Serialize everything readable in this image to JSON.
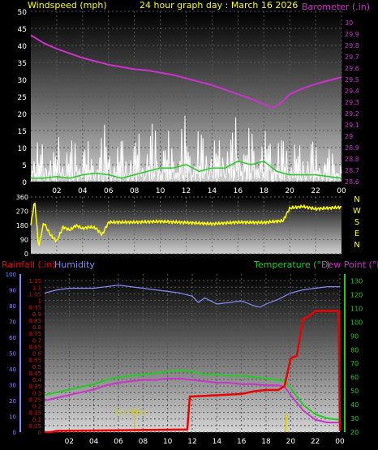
{
  "header": {
    "title": "24 hour graph day : March 16 2026"
  },
  "colors": {
    "windspeed": "#ffffff",
    "gust_avg": "#22cc22",
    "barometer": "#cc33cc",
    "wind_dir": "#ffff00",
    "rainfall": "#ee0000",
    "humidity": "#8888ff",
    "temperature": "#22cc22",
    "dew_point": "#cc33cc",
    "sunrise": "#cccc00",
    "label_yellow": "#ffff00"
  },
  "chart_data": [
    {
      "type": "line",
      "name": "wind-barometer",
      "left_axis_label": "Windspeed (mph)",
      "right_axis_label": "Barometer (.in)",
      "x_ticks": [
        "02",
        "04",
        "06",
        "08",
        "10",
        "12",
        "14",
        "16",
        "18",
        "20",
        "22",
        "00"
      ],
      "xlim": [
        0,
        24
      ],
      "left_ylim": [
        0,
        50
      ],
      "left_ticks": [
        0,
        5,
        10,
        15,
        20,
        25,
        30,
        35,
        40,
        45,
        50
      ],
      "right_ylim": [
        28.6,
        30.1
      ],
      "right_ticks": [
        "28.6",
        "28.7",
        "28.8",
        "28.9",
        "29",
        "29.1",
        "29.2",
        "29.3",
        "29.4",
        "29.5",
        "29.6",
        "29.7",
        "29.8",
        "29.9",
        "30"
      ],
      "series": [
        {
          "key": "windspeed_peaks",
          "x": [
            0.2,
            0.8,
            1.4,
            2.0,
            2.6,
            3.2,
            3.8,
            4.4,
            5.0,
            5.6,
            6.2,
            6.8,
            7.4,
            8.0,
            8.6,
            9.2,
            9.8,
            10.4,
            11.0,
            11.6,
            12.2,
            12.8,
            13.4,
            14.0,
            14.6,
            15.2,
            15.8,
            16.4,
            17.0,
            17.6,
            18.2,
            18.8,
            19.4,
            20.0,
            20.6,
            21.2,
            21.8,
            22.4,
            23.0,
            23.6
          ],
          "y": [
            12,
            15,
            10,
            17,
            13,
            16,
            14,
            12,
            15,
            18,
            11,
            16,
            12,
            17,
            14,
            19,
            16,
            15,
            13,
            20,
            15,
            17,
            16,
            14,
            18,
            17,
            22,
            16,
            19,
            15,
            20,
            14,
            16,
            13,
            12,
            15,
            11,
            13,
            10,
            12
          ]
        },
        {
          "key": "gust_avg",
          "x": [
            0,
            1,
            2,
            3,
            4,
            5,
            6,
            7,
            8,
            9,
            10,
            11,
            12,
            13,
            14,
            15,
            16,
            17,
            18,
            19,
            20,
            21,
            22,
            23,
            24
          ],
          "y": [
            1,
            1,
            1.5,
            1,
            2,
            2.5,
            2,
            1,
            2,
            3,
            4,
            4,
            5,
            3,
            4,
            4,
            6,
            5,
            6,
            3,
            2,
            2,
            2,
            1.5,
            1
          ]
        },
        {
          "key": "barometer",
          "x": [
            0,
            1,
            2,
            3,
            4,
            5,
            6,
            7,
            8,
            9,
            10,
            11,
            12,
            13,
            14,
            15,
            16,
            17,
            18,
            18.6,
            19,
            19.5,
            20,
            21,
            22,
            23,
            24
          ],
          "y": [
            29.89,
            29.82,
            29.77,
            29.73,
            29.69,
            29.66,
            29.63,
            29.61,
            29.59,
            29.58,
            29.56,
            29.54,
            29.51,
            29.48,
            29.45,
            29.41,
            29.37,
            29.33,
            29.28,
            29.25,
            29.27,
            29.31,
            29.37,
            29.42,
            29.46,
            29.49,
            29.52
          ]
        }
      ]
    },
    {
      "type": "line",
      "name": "wind-direction",
      "ylim": [
        0,
        360
      ],
      "left_ticks": [
        "0",
        "90",
        "180",
        "270",
        "360"
      ],
      "right_labels": [
        "N",
        "W",
        "S",
        "E",
        "N"
      ],
      "xlim": [
        0,
        24
      ],
      "series": [
        {
          "key": "direction",
          "x": [
            0,
            0.3,
            0.6,
            1.0,
            1.5,
            2.0,
            2.5,
            3.0,
            3.5,
            4.0,
            4.5,
            5.0,
            5.5,
            6.0,
            8,
            10,
            12,
            14,
            16,
            18,
            19.5,
            20,
            21,
            22,
            23,
            24
          ],
          "y": [
            180,
            340,
            40,
            200,
            120,
            80,
            170,
            150,
            180,
            160,
            170,
            165,
            120,
            200,
            200,
            205,
            198,
            190,
            200,
            198,
            210,
            290,
            300,
            285,
            290,
            295
          ]
        }
      ]
    },
    {
      "type": "line",
      "name": "rain-humidity-temp",
      "left_axis_label": "Rainfall (.in)",
      "left2_axis_label": "Humidity",
      "right_axis_label": "Temperature (°F)",
      "right2_axis_label": "Dew Point (°F)",
      "annotation": "Sun Rise",
      "sunrise_x": 7.3,
      "x_ticks": [
        "02",
        "04",
        "06",
        "08",
        "10",
        "12",
        "14",
        "16",
        "18",
        "20",
        "22",
        "00"
      ],
      "xlim": [
        0,
        24
      ],
      "rain_ylim": [
        0,
        1.2
      ],
      "rain_ticks": [
        "0",
        "0.05",
        "0.1",
        "0.15",
        "0.2",
        "0.25",
        "0.3",
        "0.35",
        "0.4",
        "0.45",
        "0.5",
        "0.55",
        "0.6",
        "0.65",
        "0.7",
        "0.75",
        "0.8",
        "0.85",
        "0.9",
        "0.95",
        "1",
        "1.05",
        "1.1",
        "1.15"
      ],
      "humidity_ylim": [
        0,
        100
      ],
      "humidity_ticks": [
        0,
        10,
        20,
        30,
        40,
        50,
        60,
        70,
        80,
        90,
        100
      ],
      "temp_ylim": [
        20,
        135
      ],
      "temp_ticks": [
        20,
        30,
        40,
        50,
        60,
        70,
        80,
        90,
        100,
        110,
        120,
        130
      ],
      "series": [
        {
          "key": "rainfall",
          "x": [
            0,
            0.5,
            1,
            11.6,
            11.8,
            14,
            16,
            17,
            18,
            19,
            19.5,
            20,
            20.5,
            21,
            21.5,
            22,
            23,
            23.9,
            24
          ],
          "y": [
            0,
            0,
            0.01,
            0.02,
            0.27,
            0.28,
            0.29,
            0.31,
            0.32,
            0.32,
            0.35,
            0.56,
            0.58,
            0.86,
            0.88,
            0.92,
            0.92,
            0.92,
            0.01
          ]
        },
        {
          "key": "humidity",
          "x": [
            0,
            1,
            2,
            3,
            4,
            5,
            6,
            7,
            8,
            9,
            10,
            11,
            12,
            12.5,
            13,
            14,
            15,
            16,
            17,
            17.5,
            18,
            19,
            20,
            21,
            22,
            23,
            24
          ],
          "y": [
            88,
            90,
            91,
            91,
            91,
            92,
            93,
            92,
            91,
            90,
            89,
            88,
            86,
            82,
            85,
            81,
            82,
            83,
            80,
            79,
            81,
            84,
            88,
            90,
            91,
            92,
            92
          ]
        },
        {
          "key": "temperature",
          "x": [
            0,
            1,
            2,
            3,
            4,
            5,
            6,
            7,
            8,
            9,
            10,
            11,
            12,
            13,
            14,
            15,
            16,
            17,
            18,
            19,
            19.5,
            20,
            21,
            22,
            23,
            24
          ],
          "y": [
            47,
            49,
            51,
            53,
            55,
            58,
            60,
            61,
            62,
            63,
            64,
            65,
            64,
            62,
            62,
            61,
            61,
            60,
            59,
            58,
            57,
            52,
            40,
            33,
            30,
            29
          ]
        },
        {
          "key": "dew_point",
          "x": [
            0,
            1,
            2,
            3,
            4,
            5,
            6,
            7,
            8,
            9,
            10,
            11,
            12,
            13,
            14,
            15,
            16,
            17,
            18,
            19,
            19.5,
            20,
            21,
            22,
            23,
            24
          ],
          "y": [
            43,
            45,
            47,
            49,
            51,
            54,
            56,
            57,
            58,
            58,
            59,
            59,
            58,
            57,
            56,
            56,
            55,
            55,
            54,
            54,
            53,
            47,
            36,
            29,
            27,
            27
          ]
        }
      ]
    }
  ]
}
